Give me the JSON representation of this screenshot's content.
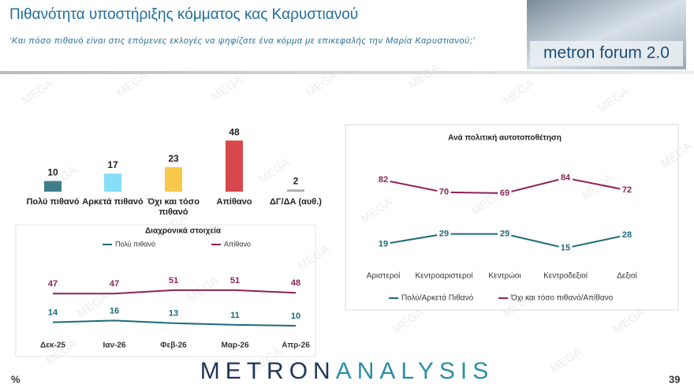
{
  "header": {
    "title": "Πιθανότητα υποστήριξης κόμματος κας Καρυστιανού",
    "subtitle": "‘Και πόσο πιθανό είναι στις επόμενες εκλογές να ψηφίζατε ένα κόμμα με επικεφαλής την Μαρία Καρυστιανού;’",
    "logo": "metron forum 2.0"
  },
  "watermark": "MEGA",
  "footer": {
    "brand": [
      "METRON",
      "ANALYSIS"
    ],
    "unit": "%",
    "page": "39"
  },
  "chart_data": [
    {
      "type": "bar",
      "categories": [
        "Πολύ πιθανό",
        "Αρκετά πιθανό",
        "Όχι και τόσο πιθανό",
        "Απίθανο",
        "ΔΓ/ΔΑ (αυθ.)"
      ],
      "values": [
        10,
        17,
        23,
        48,
        2
      ],
      "colors": [
        "#3f7f8b",
        "#86def7",
        "#f8c84a",
        "#d8474b",
        "#a9a9a9"
      ]
    },
    {
      "type": "line",
      "title": "Διαχρονικά στοιχεία",
      "categories": [
        "Δεκ-25",
        "Ιαν-26",
        "Φεβ-26",
        "Μαρ-26",
        "Απρ-26"
      ],
      "series": [
        {
          "name": "Πολύ πιθανό",
          "color": "#1c6b7a",
          "values": [
            14,
            16,
            13,
            11,
            10
          ]
        },
        {
          "name": "Απίθανο",
          "color": "#8c2257",
          "values": [
            47,
            47,
            51,
            51,
            48
          ]
        }
      ]
    },
    {
      "type": "line",
      "title": "Ανά πολιτική αυτοτοποθέτηση",
      "categories": [
        "Αριστεροί",
        "Κεντροαριστεροί",
        "Κεντρώοι",
        "Κεντροδεξιοί",
        "Δεξιοί"
      ],
      "series": [
        {
          "name": "Πολύ/Αρκετά Πιθανό",
          "color": "#1c6b7a",
          "values": [
            19,
            29,
            29,
            15,
            28
          ]
        },
        {
          "name": "Όχι και τόσο πιθανό/Απίθανο",
          "color": "#8c2257",
          "values": [
            82,
            70,
            69,
            84,
            72
          ]
        }
      ]
    }
  ]
}
